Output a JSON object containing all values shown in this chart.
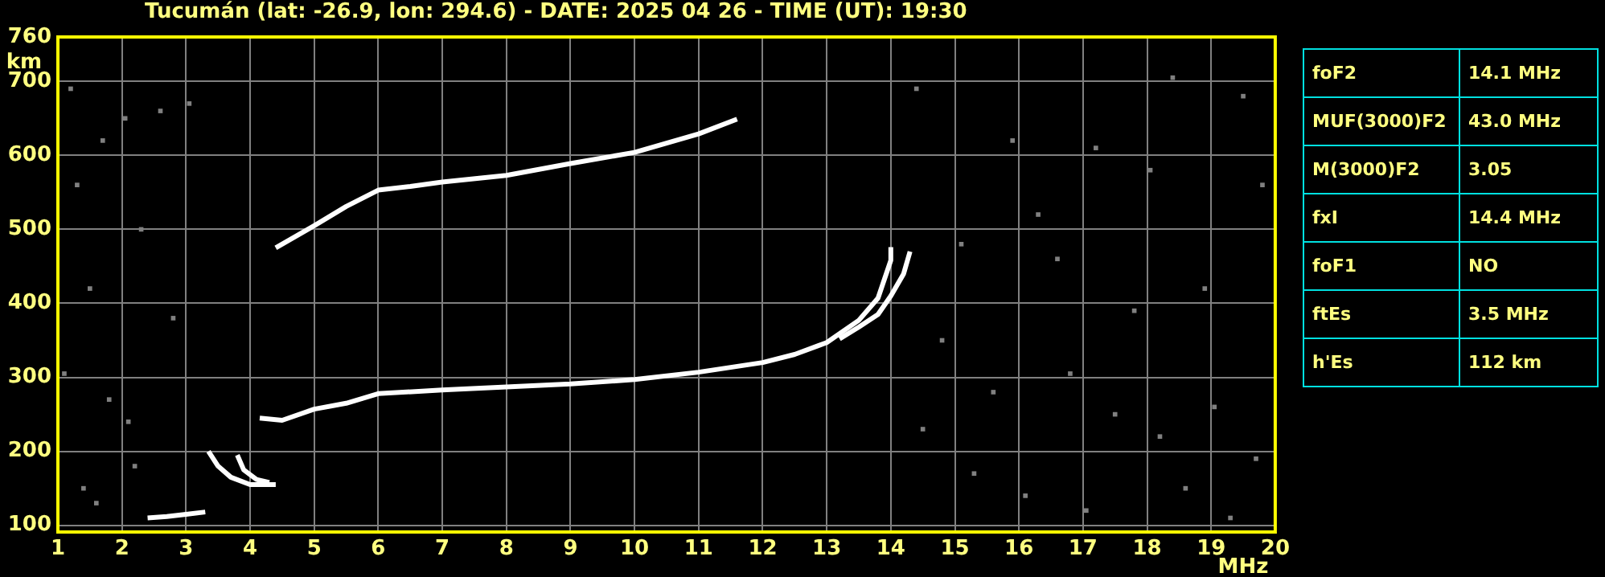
{
  "chart_data": {
    "type": "line",
    "title": "Tucumán (lat: -26.9, lon: 294.6) - DATE: 2025 04 26 - TIME (UT): 19:30",
    "xlabel": "MHz",
    "ylabel": "km",
    "xlim": [
      1,
      20
    ],
    "xticks": [
      1,
      2,
      3,
      4,
      5,
      6,
      7,
      8,
      9,
      10,
      11,
      12,
      13,
      14,
      15,
      16,
      17,
      18,
      19,
      20
    ],
    "ylim": [
      91,
      760
    ],
    "yticks": [
      100,
      200,
      300,
      400,
      500,
      600,
      700,
      760
    ],
    "grid": true,
    "marker": "none",
    "line_style": "solid",
    "series": [
      {
        "color": "#ffffff",
        "x": [
          4.15,
          4.5,
          5,
          5.5,
          6,
          7,
          8,
          9,
          10,
          11,
          12,
          12.5,
          13,
          13.5,
          13.8,
          14.0,
          14.0
        ],
        "values": [
          245,
          242,
          257,
          265,
          278,
          283,
          287,
          291,
          297,
          307,
          320,
          331,
          347,
          377,
          407,
          458,
          476
        ]
      },
      {
        "color": "#ffffff",
        "x": [
          13.2,
          13.5,
          13.8,
          14.0,
          14.2,
          14.3
        ],
        "values": [
          352,
          368,
          385,
          410,
          440,
          470
        ]
      },
      {
        "color": "#ffffff",
        "x": [
          4.4,
          5,
          5.5,
          6,
          6.5,
          7,
          8,
          9,
          10,
          11,
          11.6
        ],
        "values": [
          475,
          505,
          531,
          553,
          558,
          564,
          573,
          589,
          604,
          629,
          649
        ]
      },
      {
        "color": "#ffffff",
        "x": [
          2.4,
          2.7,
          3.0,
          3.3
        ],
        "values": [
          110,
          112,
          115,
          118
        ]
      },
      {
        "color": "#ffffff",
        "x": [
          3.35,
          3.5,
          3.7,
          4.0,
          4.4
        ],
        "values": [
          200,
          180,
          165,
          155,
          155
        ]
      },
      {
        "color": "#ffffff",
        "x": [
          3.8,
          3.9,
          4.1,
          4.3
        ],
        "values": [
          195,
          175,
          162,
          158
        ]
      },
      {
        "type": "scatter",
        "marker": "square",
        "color": "#808080",
        "x": [
          1.2,
          1.7,
          2.05,
          2.6,
          3.05,
          1.3,
          2.3,
          1.5,
          2.8,
          1.1,
          1.8,
          2.1,
          1.4,
          2.2,
          1.6,
          15.1,
          16.3,
          17.2,
          18.4,
          19.5,
          14.8,
          15.6,
          16.8,
          17.5,
          18.2,
          19.05,
          19.7,
          15.3,
          16.1,
          17.05,
          18.6,
          19.3,
          14.5,
          18.9,
          17.8,
          16.6,
          19.8,
          15.9,
          18.05,
          14.4
        ],
        "values": [
          690,
          620,
          650,
          660,
          670,
          560,
          500,
          420,
          380,
          305,
          270,
          240,
          150,
          180,
          130,
          480,
          520,
          610,
          705,
          680,
          350,
          280,
          305,
          250,
          220,
          260,
          190,
          170,
          140,
          120,
          150,
          110,
          230,
          420,
          390,
          460,
          560,
          620,
          580,
          690
        ]
      }
    ],
    "annotations": [
      "foF2",
      "14.1 MHz",
      "MUF(3000)F2",
      "43.0 MHz",
      "M(3000)F2",
      "3.05",
      "fxI",
      "14.4 MHz",
      "foF1",
      "NO",
      "ftEs",
      "3.5 MHz",
      "h'Es",
      "112 km"
    ]
  }
}
